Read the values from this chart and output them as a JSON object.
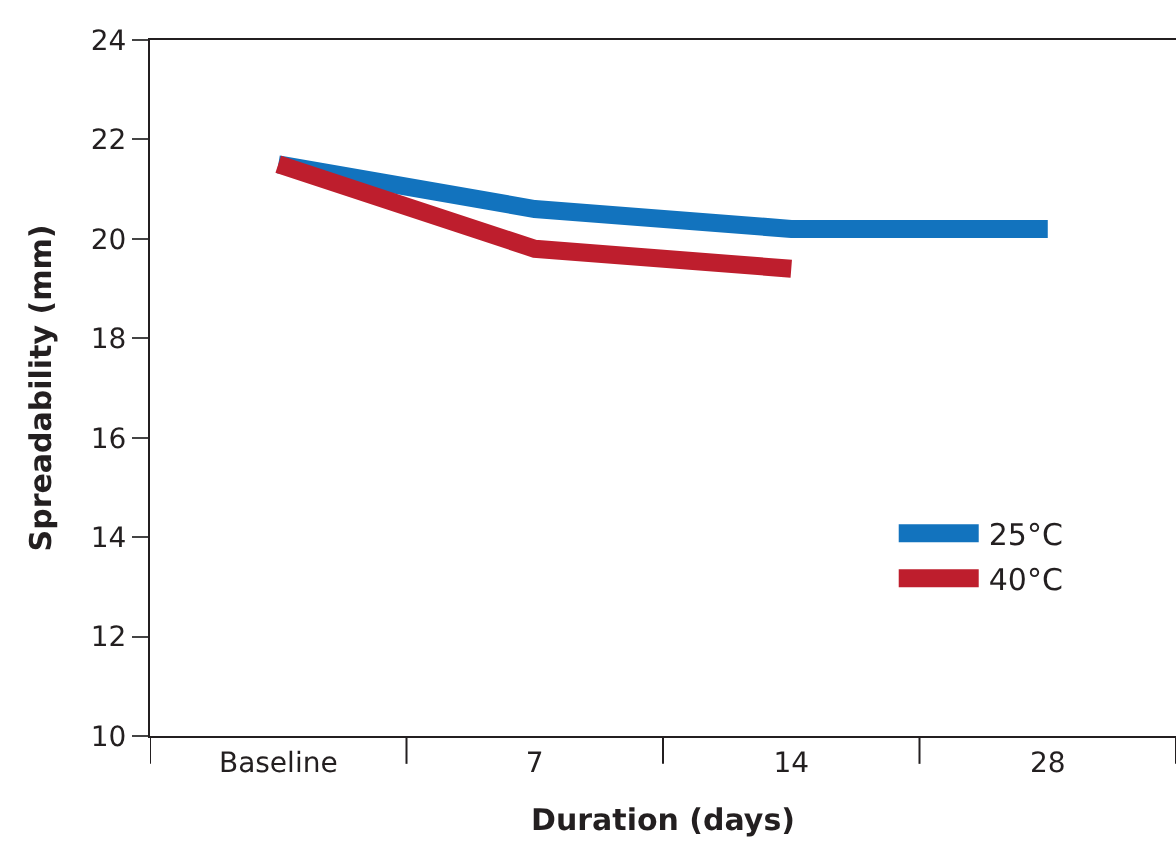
{
  "chart_data": {
    "type": "line",
    "xlabel": "Duration (days)",
    "ylabel": "Spreadability (mm)",
    "categories": [
      "Baseline",
      "7",
      "14",
      "28"
    ],
    "series": [
      {
        "name": "25°C",
        "color": "#1273be",
        "values": [
          21.5,
          20.6,
          20.2,
          20.2
        ]
      },
      {
        "name": "40°C",
        "color": "#be1e2d",
        "values": [
          21.5,
          19.8,
          19.4,
          null
        ]
      }
    ],
    "ylim": [
      10,
      24
    ],
    "yticks": [
      10,
      12,
      14,
      16,
      18,
      20,
      22,
      24
    ],
    "legend": "bottom right",
    "marker": "none",
    "line_style": "solid"
  }
}
